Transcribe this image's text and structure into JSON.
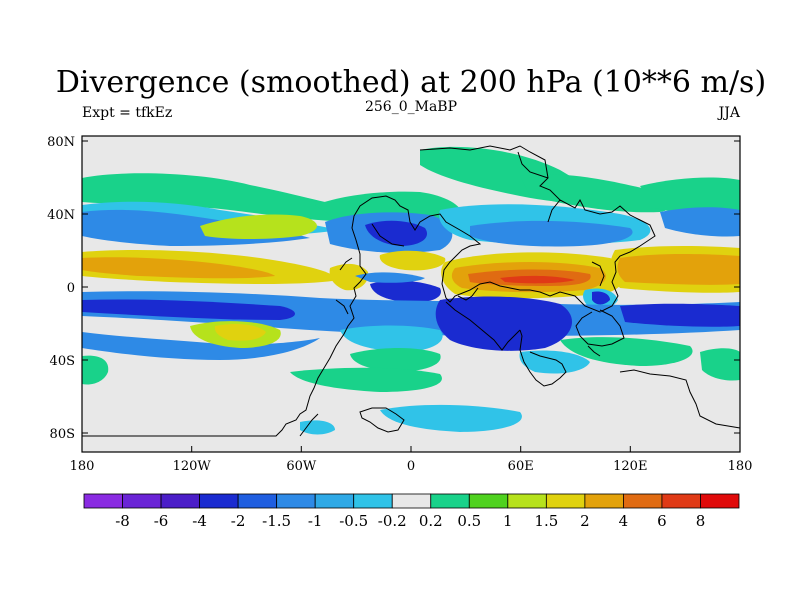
{
  "title": "Divergence (smoothed) at 200 hPa (10**6 m/s)",
  "left_label": "Expt = tfkEz",
  "center_label": "256_0_MaBP",
  "right_label": "JJA",
  "lat_ticks": [
    "80N",
    "40N",
    "0",
    "40S",
    "80S"
  ],
  "lon_ticks": [
    "180",
    "120W",
    "60W",
    "0",
    "60E",
    "120E",
    "180"
  ],
  "colorbar": {
    "colors": [
      "#8a2be2",
      "#6a24d6",
      "#4b1ec8",
      "#1a2bd0",
      "#1f5ee0",
      "#2e8ae6",
      "#2fa9e6",
      "#30c3e8",
      "#e8e8e8",
      "#19d28a",
      "#4fd21f",
      "#b6e21c",
      "#e0d20f",
      "#e3a20b",
      "#e06b12",
      "#e03a16",
      "#e00a0a"
    ],
    "labels": [
      "-8",
      "-6",
      "-4",
      "-2",
      "-1.5",
      "-1",
      "-0.5",
      "-0.2",
      "0.2",
      "0.5",
      "1",
      "1.5",
      "2",
      "4",
      "6",
      "8"
    ]
  },
  "field_colors": {
    "background": "#e8e8e8",
    "strong_neg": "#1a2bd0",
    "neg": "#1f5ee0",
    "mod_neg": "#2e8ae6",
    "weak_neg": "#30c3e8",
    "weak_pos": "#19d28a",
    "pos": "#4fd21f",
    "mod_pos": "#b6e21c",
    "strong_pos": "#e3a20b",
    "very_pos": "#e06b12",
    "max_pos": "#e03a16"
  }
}
